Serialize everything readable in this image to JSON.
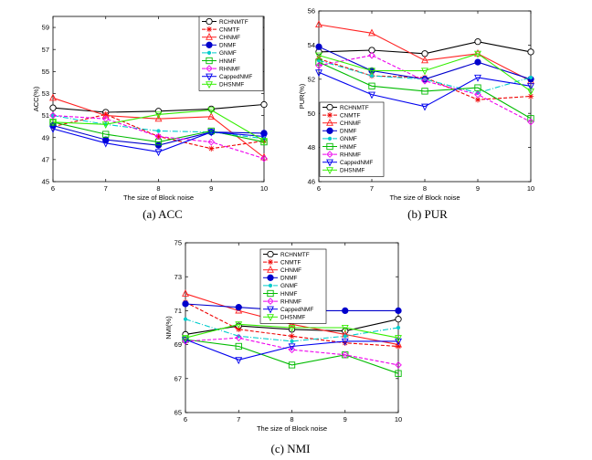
{
  "legend_labels": [
    "RCHNMTF",
    "CNMTF",
    "CHNMF",
    "DNMF",
    "GNMF",
    "HNMF",
    "RHNMF",
    "CappedNMF",
    "DHSNMF"
  ],
  "series_styles": [
    {
      "color": "#000000",
      "marker": "circle",
      "dash": ""
    },
    {
      "color": "#ee0000",
      "marker": "star",
      "dash": "4,2"
    },
    {
      "color": "#ff2222",
      "marker": "triangle-up",
      "dash": ""
    },
    {
      "color": "#0000cc",
      "marker": "circle-filled",
      "dash": ""
    },
    {
      "color": "#00cccc",
      "marker": "dot",
      "dash": "6,2,1,2"
    },
    {
      "color": "#00bb00",
      "marker": "square",
      "dash": ""
    },
    {
      "color": "#ee00ee",
      "marker": "diamond",
      "dash": "4,2"
    },
    {
      "color": "#0000ee",
      "marker": "triangle-down",
      "dash": ""
    },
    {
      "color": "#33ee00",
      "marker": "triangle-down",
      "dash": ""
    }
  ],
  "chart_data": [
    {
      "type": "line",
      "caption": "(a)  ACC",
      "xlabel": "The size of Block noise",
      "ylabel": "ACC(%)",
      "x": [
        6,
        7,
        8,
        9,
        10
      ],
      "ylim": [
        45,
        60
      ],
      "yticks": [
        45,
        47,
        49,
        51,
        53,
        55,
        57,
        59
      ],
      "series": [
        {
          "name": "RCHNMTF",
          "values": [
            51.7,
            51.3,
            51.4,
            51.6,
            52.0
          ]
        },
        {
          "name": "CNMTF",
          "values": [
            50.0,
            51.1,
            49.1,
            48.0,
            48.7
          ]
        },
        {
          "name": "CHNMF",
          "values": [
            52.6,
            51.0,
            50.7,
            50.9,
            47.2
          ]
        },
        {
          "name": "DNMF",
          "values": [
            50.1,
            48.8,
            48.3,
            49.5,
            49.4
          ]
        },
        {
          "name": "GNMF",
          "values": [
            51.0,
            50.2,
            49.6,
            49.5,
            48.9
          ]
        },
        {
          "name": "HNMF",
          "values": [
            50.4,
            49.3,
            48.6,
            49.6,
            48.6
          ]
        },
        {
          "name": "RHNMF",
          "values": [
            51.0,
            50.7,
            49.1,
            48.6,
            47.1
          ]
        },
        {
          "name": "CappedNMF",
          "values": [
            49.8,
            48.5,
            47.7,
            49.5,
            49.1
          ]
        },
        {
          "name": "DHSNMF",
          "values": [
            50.4,
            50.2,
            51.1,
            51.5,
            48.7
          ]
        }
      ]
    },
    {
      "type": "line",
      "caption": "(b)  PUR",
      "xlabel": "The size of Block noise",
      "ylabel": "PUR(%)",
      "x": [
        6,
        7,
        8,
        9,
        10
      ],
      "ylim": [
        46,
        56
      ],
      "yticks": [
        46,
        48,
        50,
        52,
        54,
        56
      ],
      "series": [
        {
          "name": "RCHNMTF",
          "values": [
            53.6,
            53.7,
            53.5,
            54.2,
            53.6
          ]
        },
        {
          "name": "CNMTF",
          "values": [
            53.2,
            52.2,
            52.1,
            50.8,
            51.0
          ]
        },
        {
          "name": "CHNMF",
          "values": [
            55.2,
            54.7,
            53.1,
            53.5,
            51.9
          ]
        },
        {
          "name": "DNMF",
          "values": [
            53.9,
            52.5,
            52.0,
            53.0,
            52.0
          ]
        },
        {
          "name": "GNMF",
          "values": [
            53.1,
            52.2,
            52.0,
            51.2,
            52.1
          ]
        },
        {
          "name": "HNMF",
          "values": [
            53.0,
            51.6,
            51.3,
            51.5,
            49.7
          ]
        },
        {
          "name": "RHNMF",
          "values": [
            52.8,
            53.4,
            51.9,
            51.1,
            49.5
          ]
        },
        {
          "name": "CappedNMF",
          "values": [
            52.4,
            51.1,
            50.4,
            52.1,
            51.6
          ]
        },
        {
          "name": "DHSNMF",
          "values": [
            53.4,
            52.5,
            52.5,
            53.5,
            51.3
          ]
        }
      ]
    },
    {
      "type": "line",
      "caption": "(c)  NMI",
      "xlabel": "The size of Block noise",
      "ylabel": "NMI(%)",
      "x": [
        6,
        7,
        8,
        9,
        10
      ],
      "ylim": [
        65,
        75
      ],
      "yticks": [
        65,
        67,
        69,
        71,
        73,
        75
      ],
      "series": [
        {
          "name": "RCHNMTF",
          "values": [
            69.6,
            70.1,
            69.9,
            69.8,
            70.5
          ]
        },
        {
          "name": "CNMTF",
          "values": [
            71.5,
            69.9,
            69.5,
            69.1,
            68.9
          ]
        },
        {
          "name": "CHNMF",
          "values": [
            72.0,
            71.0,
            70.2,
            69.6,
            69.0
          ]
        },
        {
          "name": "DNMF",
          "values": [
            71.4,
            71.2,
            71.0,
            71.0,
            71.0
          ]
        },
        {
          "name": "GNMF",
          "values": [
            70.5,
            69.5,
            69.2,
            69.5,
            70.0
          ]
        },
        {
          "name": "HNMF",
          "values": [
            69.3,
            68.9,
            67.8,
            68.4,
            67.3
          ]
        },
        {
          "name": "RHNMF",
          "values": [
            69.2,
            69.4,
            68.7,
            68.4,
            67.8
          ]
        },
        {
          "name": "CappedNMF",
          "values": [
            69.3,
            68.1,
            68.9,
            69.2,
            69.2
          ]
        },
        {
          "name": "DHSNMF",
          "values": [
            69.4,
            70.2,
            70.0,
            70.0,
            69.4
          ]
        }
      ]
    }
  ]
}
